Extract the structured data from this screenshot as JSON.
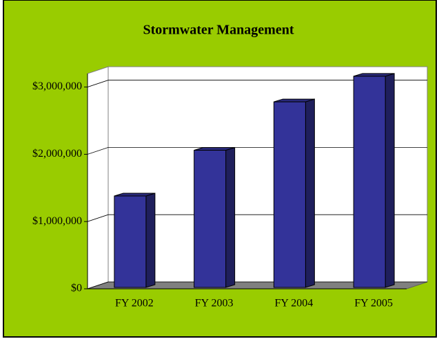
{
  "chart_data": {
    "type": "bar3d",
    "title": "Stormwater Management",
    "categories": [
      "FY 2002",
      "FY 2003",
      "FY 2004",
      "FY 2005"
    ],
    "values": [
      1380000,
      2060000,
      2780000,
      3160000
    ],
    "color": "#333399",
    "ylim": [
      0,
      3200000
    ],
    "yticks": [
      {
        "value": 0,
        "label": "$0"
      },
      {
        "value": 1000000,
        "label": "$1,000,000"
      },
      {
        "value": 2000000,
        "label": "$2,000,000"
      },
      {
        "value": 3000000,
        "label": "$3,000,000"
      }
    ],
    "grid": true
  }
}
